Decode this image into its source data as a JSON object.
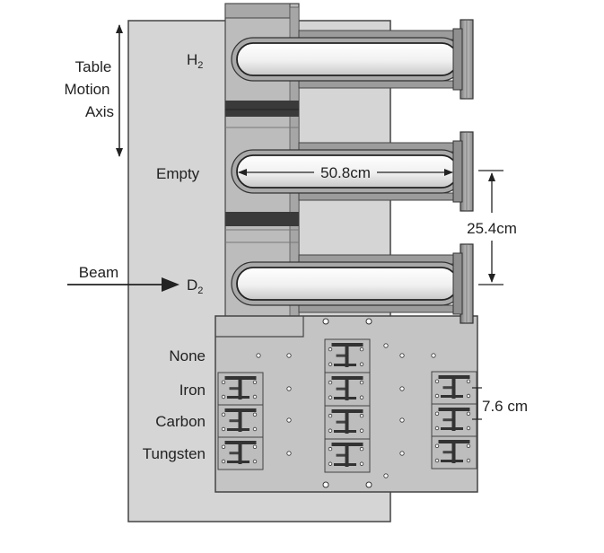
{
  "labels": {
    "table_motion": [
      "Table",
      "Motion",
      "Axis"
    ],
    "beam": "Beam",
    "cells": [
      {
        "main": "H",
        "sub": "2"
      },
      {
        "main": "Empty",
        "sub": ""
      },
      {
        "main": "D",
        "sub": "2"
      }
    ],
    "solids": [
      "None",
      "Iron",
      "Carbon",
      "Tungsten"
    ]
  },
  "dimensions": {
    "length": "50.8cm",
    "spacing": "25.4cm",
    "solid_pitch": "7.6 cm"
  },
  "colors": {
    "table": "#d5d5d5",
    "frame": "#bdbdbd",
    "solid_plate": "#c4c4c4",
    "flange": "#9a9a9a",
    "dark_band": "#3a3a3a",
    "outline": "#444444",
    "tube": "#f2f2f2"
  }
}
